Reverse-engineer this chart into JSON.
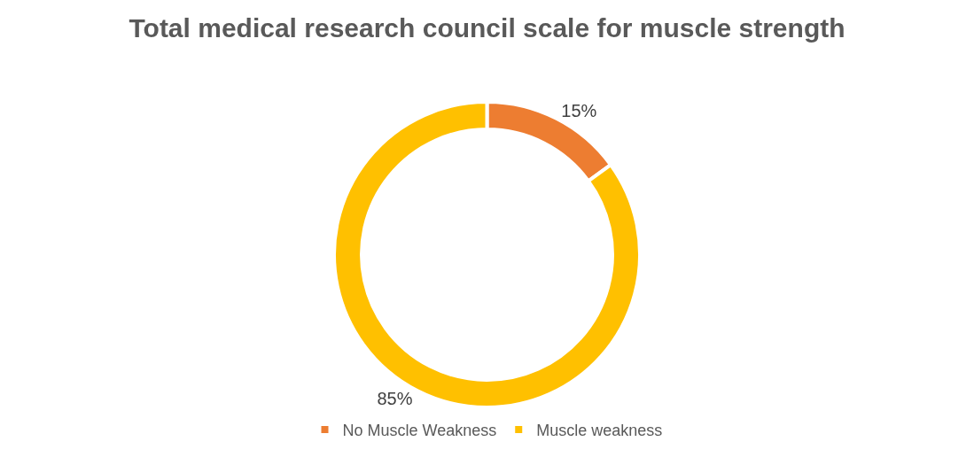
{
  "chart_data": {
    "type": "donut",
    "title": "Total medical research council scale for muscle strength",
    "categories": [
      "No Muscle Weakness",
      "Muscle weakness"
    ],
    "values": [
      15,
      85
    ],
    "colors": [
      "#ed7d31",
      "#ffc000"
    ],
    "value_labels": [
      "15%",
      "85%"
    ],
    "legend": "bottom"
  }
}
